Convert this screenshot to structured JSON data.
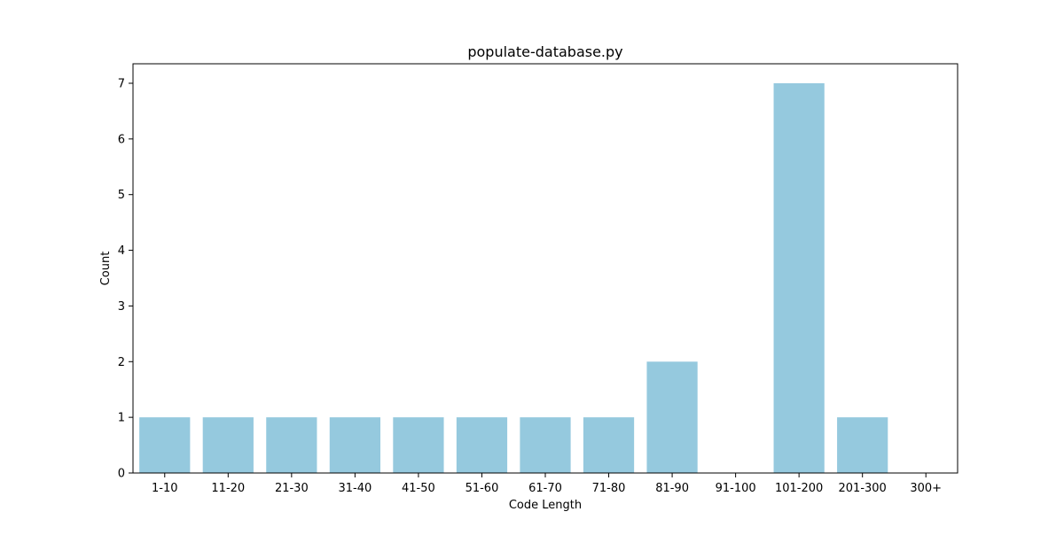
{
  "chart_data": {
    "type": "bar",
    "title": "populate-database.py",
    "xlabel": "Code Length",
    "ylabel": "Count",
    "categories": [
      "1-10",
      "11-20",
      "21-30",
      "31-40",
      "41-50",
      "51-60",
      "61-70",
      "71-80",
      "81-90",
      "91-100",
      "101-200",
      "201-300",
      "300+"
    ],
    "values": [
      1,
      1,
      1,
      1,
      1,
      1,
      1,
      1,
      2,
      0,
      7,
      1,
      0
    ],
    "yticks": [
      0,
      1,
      2,
      3,
      4,
      5,
      6,
      7
    ],
    "ylim": [
      0,
      7.35
    ],
    "bar_color": "#95c9de",
    "grid": false,
    "legend": "none"
  }
}
